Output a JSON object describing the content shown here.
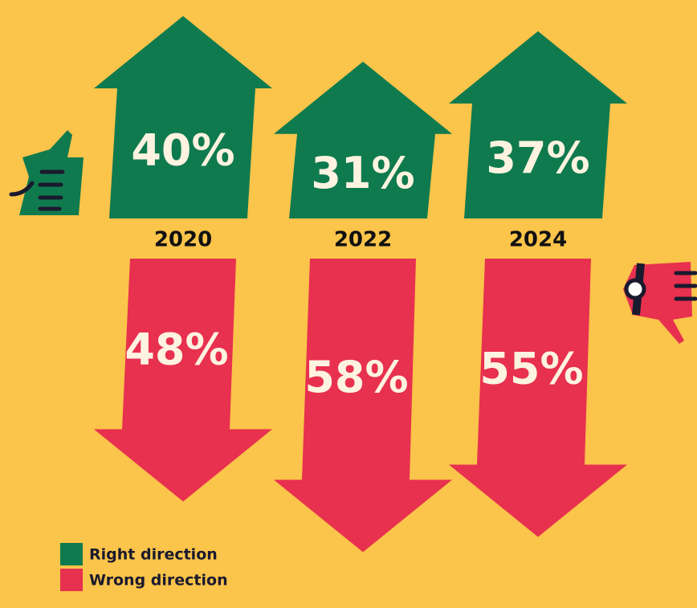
{
  "chart_data": {
    "type": "arrows",
    "categories": [
      "2020",
      "2022",
      "2024"
    ],
    "series": [
      {
        "name": "Right direction",
        "color": "#0f7a4e",
        "values": [
          40,
          31,
          37
        ],
        "value_labels": [
          "40%",
          "31%",
          "37%"
        ]
      },
      {
        "name": "Wrong direction",
        "color": "#e8304f",
        "values": [
          48,
          58,
          55
        ],
        "value_labels": [
          "48%",
          "58%",
          "55%"
        ]
      }
    ]
  }
}
